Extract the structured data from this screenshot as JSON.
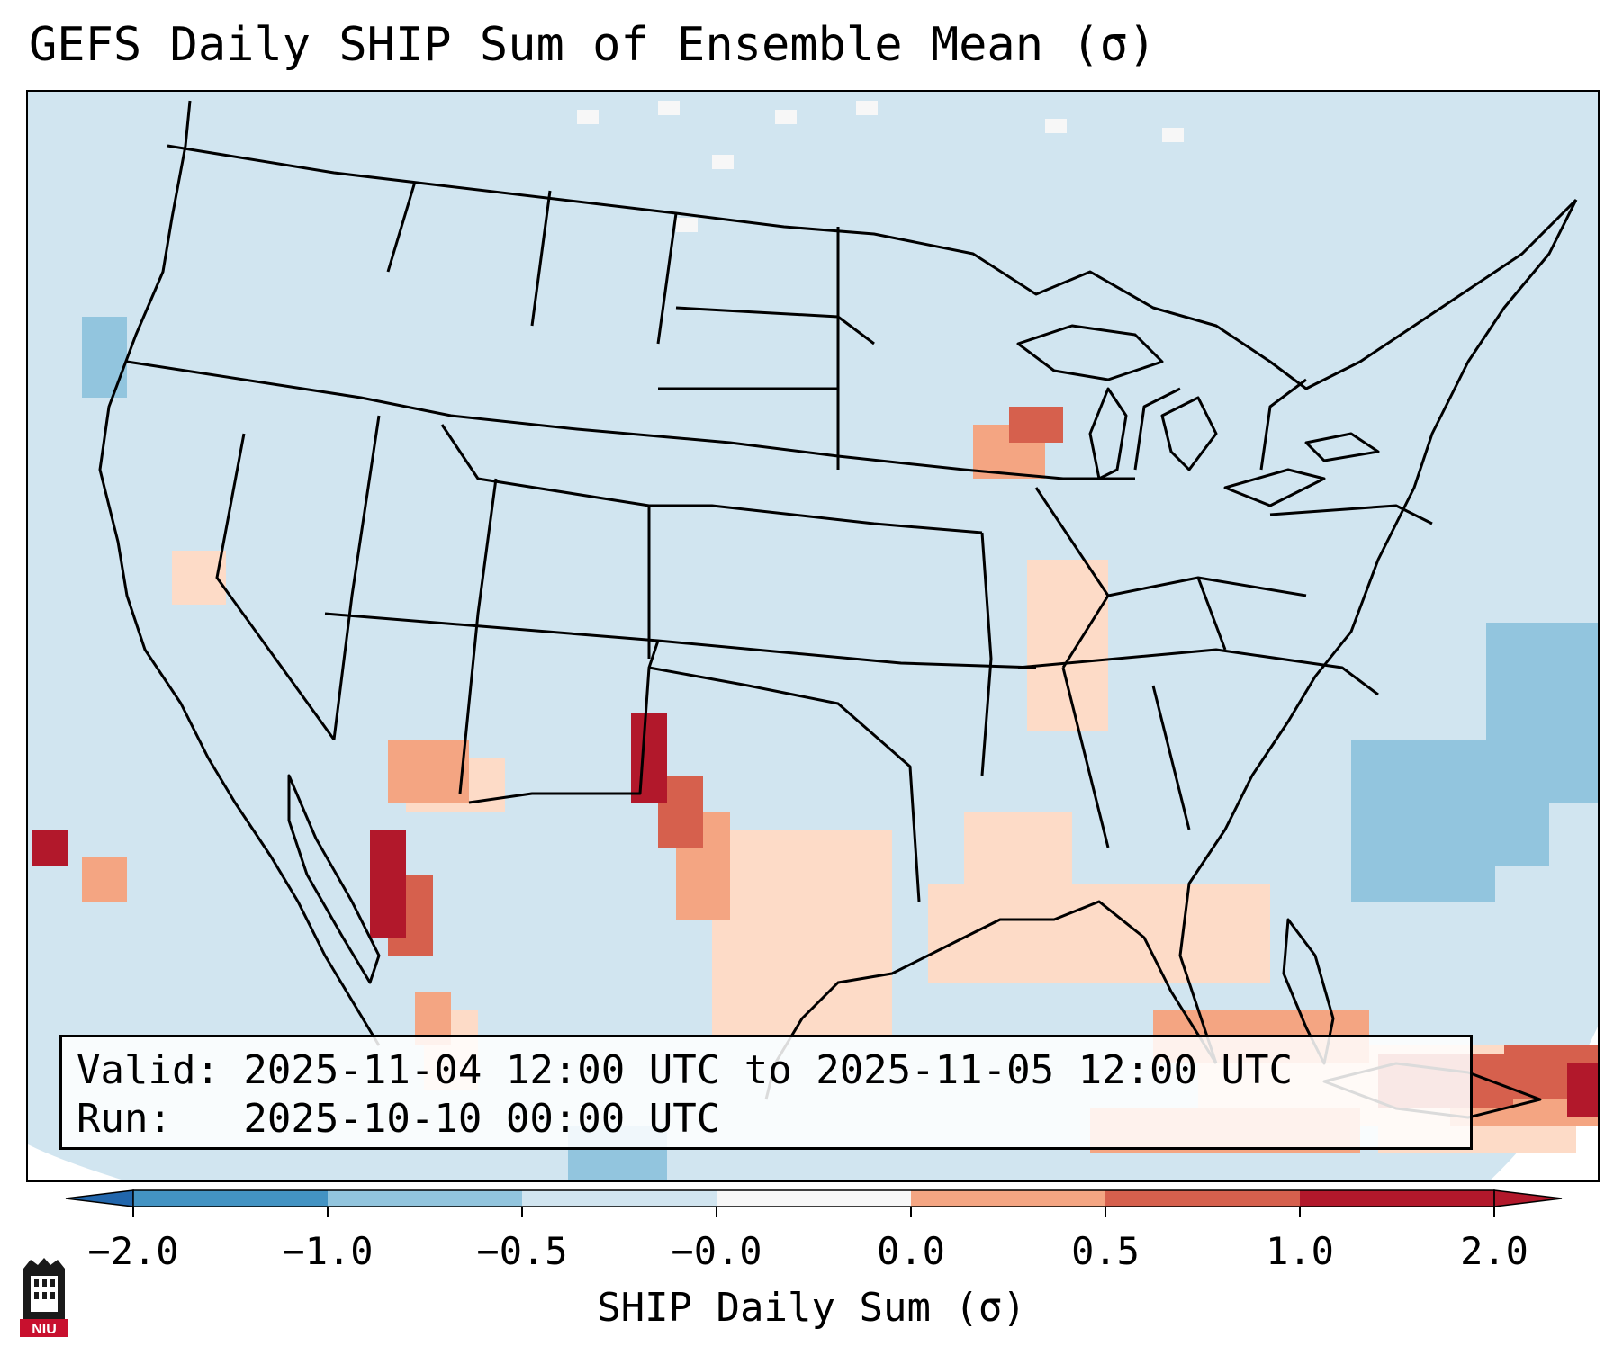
{
  "title": "GEFS Daily SHIP Sum of Ensemble Mean (σ)",
  "info": {
    "valid_line": "Valid: 2025-11-04 12:00 UTC to 2025-11-05 12:00 UTC",
    "run_line": "Run:   2025-10-10 00:00 UTC"
  },
  "colorbar": {
    "label": "SHIP Daily Sum (σ)",
    "ticks": [
      "−2.0",
      "−1.0",
      "−0.5",
      "−0.0",
      "0.0",
      "0.5",
      "1.0",
      "2.0"
    ],
    "colors": [
      "#4393c3",
      "#92c5de",
      "#d1e5f0",
      "#f7f7f7",
      "#fddbc7",
      "#f4a582",
      "#d6604d",
      "#b2182b"
    ]
  },
  "logo": {
    "text": "NIU",
    "color": "#c8102e"
  },
  "map": {
    "background_color": "#d1e5f0",
    "border_color": "#000000"
  }
}
